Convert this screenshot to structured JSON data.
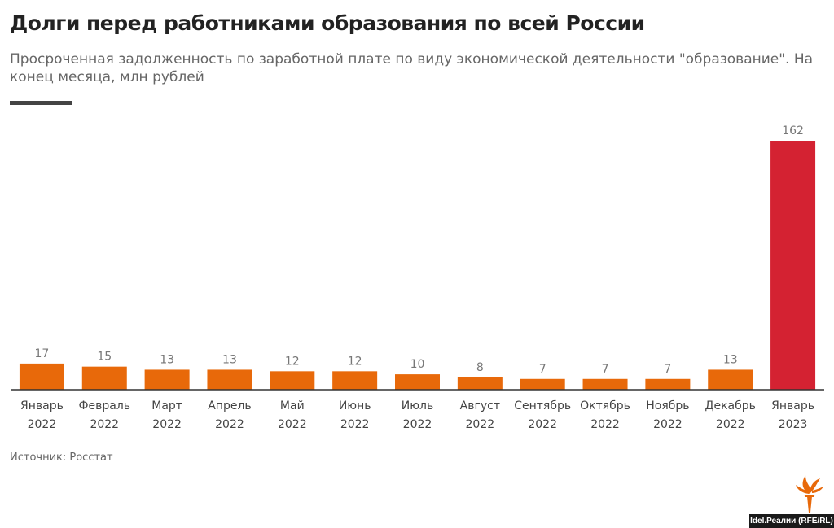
{
  "title": "Долги перед работниками образования по всей России",
  "subtitle": "Просроченная задолженность по заработной плате по виду экономической деятельности \"образование\". На конец месяца, млн рублей",
  "source": "Источник: Росстат",
  "credit": "Idel.Реалии (RFE/RL)",
  "colors": {
    "normal": "#e8690a",
    "highlight": "#d42232"
  },
  "chart_data": {
    "type": "bar",
    "categories": [
      [
        "Январь",
        "2022"
      ],
      [
        "Февраль",
        "2022"
      ],
      [
        "Март",
        "2022"
      ],
      [
        "Апрель",
        "2022"
      ],
      [
        "Май",
        "2022"
      ],
      [
        "Июнь",
        "2022"
      ],
      [
        "Июль",
        "2022"
      ],
      [
        "Август",
        "2022"
      ],
      [
        "Сентябрь",
        "2022"
      ],
      [
        "Октябрь",
        "2022"
      ],
      [
        "Ноябрь",
        "2022"
      ],
      [
        "Декабрь",
        "2022"
      ],
      [
        "Январь",
        "2023"
      ]
    ],
    "values": [
      17,
      15,
      13,
      13,
      12,
      12,
      10,
      8,
      7,
      7,
      7,
      13,
      162
    ],
    "highlight_index": 12,
    "ylim": [
      0,
      162
    ],
    "grid": false
  }
}
